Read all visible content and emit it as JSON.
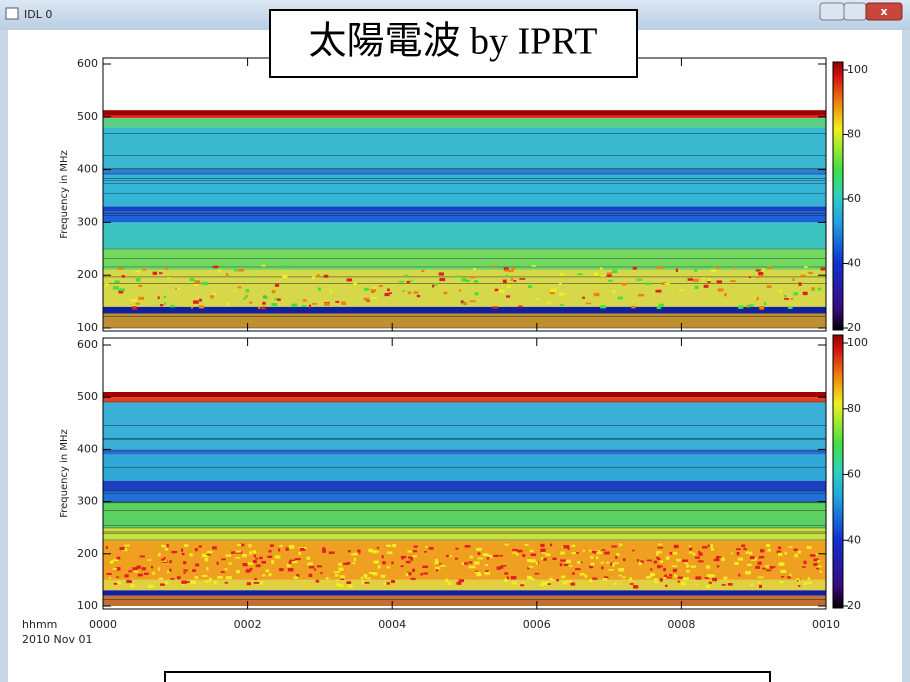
{
  "window": {
    "title": "IDL 0"
  },
  "banner": "太陽電波 by IPRT",
  "panels": [
    {
      "y_label": "Frequency in MHz",
      "yticks": [
        100,
        200,
        300,
        400,
        500,
        600
      ],
      "colorbar_ticks": [
        20,
        40,
        60,
        80,
        100
      ]
    },
    {
      "y_label": "Frequency in MHz",
      "yticks": [
        100,
        200,
        300,
        400,
        500,
        600
      ],
      "colorbar_ticks": [
        20,
        40,
        60,
        80,
        100
      ]
    }
  ],
  "x_axis": {
    "unit_label": "hhmm",
    "date": "2010 Nov 01",
    "ticks": [
      "0000",
      "0002",
      "0004",
      "0006",
      "0008",
      "0010"
    ]
  }
}
